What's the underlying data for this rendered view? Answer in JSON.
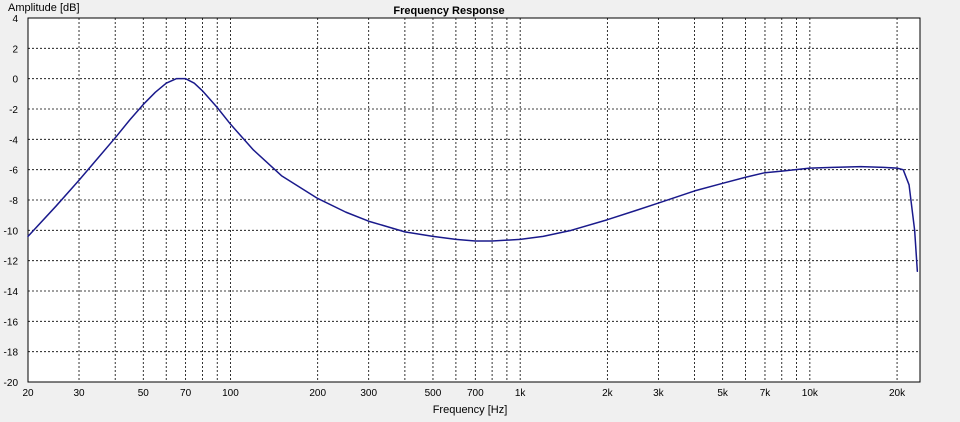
{
  "chart_data": {
    "type": "line",
    "title": "Frequency Response",
    "xlabel": "Frequency [Hz]",
    "ylabel": "Amplitude [dB]",
    "x_scale": "log",
    "xlim": [
      20,
      24000
    ],
    "ylim": [
      -20,
      4
    ],
    "grid": true,
    "x_ticks": [
      20,
      30,
      50,
      70,
      100,
      200,
      300,
      500,
      700,
      1000,
      2000,
      3000,
      5000,
      7000,
      10000,
      20000
    ],
    "x_tick_labels": [
      "20",
      "30",
      "50",
      "70",
      "100",
      "200",
      "300",
      "500",
      "700",
      "1k",
      "2k",
      "3k",
      "5k",
      "7k",
      "10k",
      "20k"
    ],
    "y_ticks": [
      4,
      2,
      0,
      -2,
      -4,
      -6,
      -8,
      -10,
      -12,
      -14,
      -16,
      -18,
      -20
    ],
    "y_tick_labels": [
      "4",
      "2",
      "0",
      "-2",
      "-4",
      "-6",
      "-8",
      "-10",
      "-12",
      "-14",
      "-16",
      "-18",
      "-20"
    ],
    "series": [
      {
        "color": "#1a1a8c",
        "x": [
          20,
          25,
          30,
          35,
          40,
          45,
          50,
          55,
          60,
          65,
          70,
          75,
          80,
          90,
          100,
          120,
          150,
          200,
          250,
          300,
          400,
          500,
          600,
          700,
          800,
          1000,
          1200,
          1500,
          2000,
          2500,
          3000,
          4000,
          5000,
          6000,
          7000,
          8000,
          10000,
          12000,
          15000,
          18000,
          20000,
          21000,
          22000,
          23000,
          23500
        ],
        "y": [
          -10.4,
          -8.4,
          -6.7,
          -5.2,
          -3.9,
          -2.7,
          -1.7,
          -0.9,
          -0.3,
          0.0,
          0.0,
          -0.3,
          -0.8,
          -1.9,
          -3.0,
          -4.7,
          -6.4,
          -7.9,
          -8.8,
          -9.4,
          -10.1,
          -10.4,
          -10.6,
          -10.7,
          -10.7,
          -10.6,
          -10.4,
          -10.0,
          -9.3,
          -8.7,
          -8.2,
          -7.4,
          -6.9,
          -6.5,
          -6.2,
          -6.1,
          -5.9,
          -5.85,
          -5.8,
          -5.85,
          -5.9,
          -6.0,
          -7.0,
          -10.0,
          -12.7
        ]
      }
    ]
  }
}
